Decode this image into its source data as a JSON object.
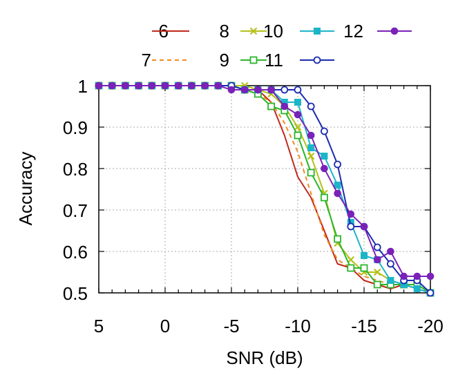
{
  "chart_data": {
    "type": "line",
    "xlabel": "SNR (dB)",
    "ylabel": "Accuracy",
    "x_tick_labels": [
      "5",
      "0",
      "-5",
      "-10",
      "-15",
      "-20"
    ],
    "y_tick_labels": [
      "0.5",
      "0.6",
      "0.7",
      "0.8",
      "0.9",
      "1"
    ],
    "x_axis": "reversed",
    "xlim": [
      5,
      -20
    ],
    "ylim": [
      0.5,
      1.0
    ],
    "grid": true,
    "legend_position": "top",
    "x": [
      5,
      4,
      3,
      2,
      1,
      0,
      -1,
      -2,
      -3,
      -4,
      -5,
      -6,
      -7,
      -8,
      -9,
      -10,
      -11,
      -12,
      -13,
      -14,
      -15,
      -16,
      -17,
      -18,
      -19,
      -20
    ],
    "series": [
      {
        "name": "6",
        "color": "#c0281a",
        "dash": "solid",
        "marker": "none",
        "values": [
          1,
          1,
          1,
          1,
          1,
          1,
          1,
          1,
          1,
          1,
          1,
          0.99,
          0.99,
          0.96,
          0.88,
          0.78,
          0.73,
          0.65,
          0.57,
          0.56,
          0.53,
          0.52,
          0.51,
          0.52,
          0.51,
          0.5
        ]
      },
      {
        "name": "7",
        "color": "#f08a1e",
        "dash": "dashed",
        "marker": "none",
        "values": [
          1,
          1,
          1,
          1,
          1,
          1,
          1,
          1,
          1,
          1,
          1,
          0.99,
          0.98,
          0.96,
          0.91,
          0.84,
          0.74,
          0.64,
          0.58,
          0.56,
          0.54,
          0.53,
          0.52,
          0.52,
          0.51,
          0.5
        ]
      },
      {
        "name": "8",
        "color": "#b5c11b",
        "dash": "solid",
        "marker": "x",
        "values": [
          1,
          1,
          1,
          1,
          1,
          1,
          1,
          1,
          1,
          1,
          1,
          1.0,
          0.99,
          0.98,
          0.95,
          0.9,
          0.83,
          0.74,
          0.62,
          0.58,
          0.55,
          0.55,
          0.53,
          0.52,
          0.52,
          0.5
        ]
      },
      {
        "name": "9",
        "color": "#2bb52b",
        "dash": "solid",
        "marker": "open-square",
        "values": [
          1,
          1,
          1,
          1,
          1,
          1,
          1,
          1,
          1,
          1,
          1,
          0.99,
          0.98,
          0.95,
          0.94,
          0.88,
          0.79,
          0.73,
          0.63,
          0.56,
          0.56,
          0.52,
          0.52,
          0.52,
          0.52,
          0.5
        ]
      },
      {
        "name": "10",
        "color": "#1cb5c8",
        "dash": "solid",
        "marker": "filled-square",
        "values": [
          1,
          1,
          1,
          1,
          1,
          1,
          1,
          1,
          1,
          1,
          1,
          0.99,
          0.99,
          0.99,
          0.96,
          0.96,
          0.85,
          0.83,
          0.76,
          0.67,
          0.59,
          0.58,
          0.53,
          0.52,
          0.51,
          0.5
        ]
      },
      {
        "name": "11",
        "color": "#1a2bb0",
        "dash": "solid",
        "marker": "open-circle",
        "values": [
          1,
          1,
          1,
          1,
          1,
          1,
          1,
          1,
          1,
          1,
          1,
          0.99,
          0.99,
          0.99,
          0.99,
          0.99,
          0.95,
          0.89,
          0.81,
          0.66,
          0.66,
          0.61,
          0.57,
          0.53,
          0.53,
          0.5
        ]
      },
      {
        "name": "12",
        "color": "#7a22b8",
        "dash": "solid",
        "marker": "filled-circle",
        "values": [
          1,
          1,
          1,
          1,
          1,
          1,
          1,
          1,
          1,
          1,
          0.99,
          0.99,
          0.99,
          0.99,
          0.95,
          0.93,
          0.88,
          0.8,
          0.74,
          0.69,
          0.66,
          0.58,
          0.6,
          0.54,
          0.54,
          0.54
        ]
      }
    ]
  }
}
